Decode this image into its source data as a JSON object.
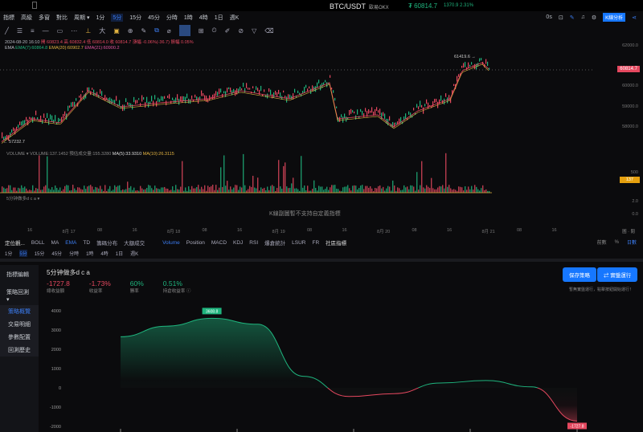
{
  "header": {
    "title": "BTC/USDT",
    "exchange": "歐易OKX",
    "price": "₮ 60814.7",
    "change": "1370.9",
    "change_pct": "2.31%"
  },
  "toolbar": {
    "items": [
      "指標",
      "高級",
      "多窗",
      "對比",
      "周期 ▾"
    ],
    "periods": [
      "1分",
      "5分",
      "15分",
      "45分",
      "分時",
      "1時",
      "4時",
      "1日",
      "週K"
    ],
    "active_period": "5分"
  },
  "right_tools": {
    "zoom": "0s",
    "kline_analysis": "K線分析"
  },
  "legend": {
    "date": "2024-08-20 16:10",
    "open": "開 60823.4",
    "high": "高 60832.4",
    "low": "低 60814.0",
    "close": "收 60814.7",
    "change": "漲幅 -0.06%(-36.7)",
    "amp": "振幅 0.05%",
    "ema_label": "EMA",
    "ema7": "EMA(7):60864.8",
    "ema20": "EMA(20):60902.7",
    "ema21": "EMA(21):60900.2"
  },
  "price_axis": [
    "62000.0",
    "60000.0",
    "59000.0",
    "58000.0"
  ],
  "current_price_tag": "60814.7",
  "high_mark": "61419.6 →",
  "low_mark": "← 57232.7",
  "volume_legend": {
    "name": "VOLUME",
    "vol": "VOLUME:137.1452",
    "avg": "預估成交量:155.3280",
    "ma5": "MA(5):33.9310",
    "ma10": "MA(10):26.3115"
  },
  "volume_axis": {
    "top": "500",
    "tag": "137",
    "mid": "2.0",
    "bottom": "0.0"
  },
  "custom_indicator": {
    "label": "5分钟做多d c a ▾",
    "message": "K線副圖暫不支持自定義指標"
  },
  "dates": [
    "16",
    "8月 17",
    "08",
    "16",
    "8月 18",
    "08",
    "16",
    "8月 19",
    "08",
    "16",
    "8月 20",
    "08",
    "16",
    "8月 21",
    "08",
    "16"
  ],
  "date_right": "圖 · 閱",
  "indicators": {
    "title": "定位觀...",
    "main": [
      "BOLL",
      "MA",
      "EMA",
      "TD",
      "籌碼分布",
      "大額成交"
    ],
    "active_main": "EMA",
    "sub": [
      "Volume",
      "Position",
      "MACD",
      "KDJ",
      "RSI",
      "爆倉統計",
      "LSUR",
      "FR"
    ],
    "active_sub": "Volume",
    "social": "社區指標",
    "right": [
      "前數",
      "%",
      "日數"
    ]
  },
  "sidebar": {
    "items": [
      "指標編輯",
      "策略回測 ▾"
    ],
    "subitems": [
      "策略概覽",
      "交易明細",
      "參數配置",
      "回測歷史"
    ],
    "active": "策略概覽"
  },
  "strategy": {
    "name": "5分钟做多d c a",
    "stats": [
      {
        "value": "-1727.8",
        "label": "總收益額",
        "color": "#e5485f"
      },
      {
        "value": "-1.73%",
        "label": "收益率",
        "color": "#e5485f"
      },
      {
        "value": "60%",
        "label": "勝率",
        "color": "#1fb57e"
      },
      {
        "value": "0.51%",
        "label": "持倉收益率 ⓘ",
        "color": "#1fb57e"
      }
    ],
    "btn_save": "保存策略",
    "btn_run": "⇄ 實盤運行",
    "hint": "暫無實盤運行，點擊按鈕開始運行！"
  },
  "chart_data": {
    "type": "area",
    "ylabel": "",
    "y_ticks": [
      4000,
      3000,
      2000,
      1000,
      0,
      -1000,
      -2000
    ],
    "ylim": [
      -2000,
      4000
    ],
    "values": [
      2650,
      3200,
      3608.8,
      3300,
      600,
      -450,
      -300,
      250,
      380,
      50,
      -1727.8
    ],
    "peak_label": "3608.8",
    "end_label": "-1727.8",
    "colors": {
      "positive": "#1fb57e",
      "negative": "#e5485f"
    }
  }
}
